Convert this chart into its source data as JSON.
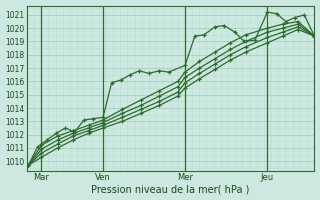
{
  "background_color": "#cce8e0",
  "grid_major_color": "#99ccbb",
  "grid_minor_color": "#bbddd4",
  "line_color": "#2d6b2d",
  "title": "Pression niveau de la mer( hPa )",
  "ylabel_values": [
    1010,
    1011,
    1012,
    1013,
    1014,
    1015,
    1016,
    1017,
    1018,
    1019,
    1020,
    1021
  ],
  "xlim": [
    0.0,
    9.33
  ],
  "ylim": [
    1009.3,
    1021.7
  ],
  "x_ticks": [
    0.47,
    2.47,
    5.13,
    7.8
  ],
  "x_tick_labels": [
    "Mar",
    "Ven",
    "Mer",
    "Jeu"
  ],
  "vlines": [
    0.47,
    2.47,
    5.13,
    7.8
  ],
  "series": [
    {
      "x": [
        0.05,
        0.35,
        0.65,
        0.95,
        1.25,
        1.55,
        1.85,
        2.15,
        2.47,
        2.75,
        3.05,
        3.35,
        3.65,
        3.95,
        4.3,
        4.6,
        5.13,
        5.45,
        5.75,
        6.1,
        6.4,
        6.75,
        7.05,
        7.4,
        7.8,
        8.1,
        8.4,
        8.7,
        9.0,
        9.33
      ],
      "y": [
        1009.7,
        1011.1,
        1011.6,
        1012.1,
        1012.5,
        1012.2,
        1013.1,
        1013.2,
        1013.3,
        1015.9,
        1016.1,
        1016.5,
        1016.8,
        1016.6,
        1016.8,
        1016.7,
        1017.2,
        1019.4,
        1019.5,
        1020.1,
        1020.2,
        1019.7,
        1019.0,
        1019.1,
        1021.2,
        1021.1,
        1020.5,
        1020.8,
        1021.0,
        1019.4
      ]
    },
    {
      "x": [
        0.05,
        0.47,
        1.0,
        1.5,
        2.0,
        2.47,
        3.1,
        3.7,
        4.3,
        4.9,
        5.13,
        5.6,
        6.1,
        6.6,
        7.1,
        7.8,
        8.3,
        8.8,
        9.33
      ],
      "y": [
        1009.7,
        1011.2,
        1011.9,
        1012.3,
        1012.7,
        1013.1,
        1013.9,
        1014.6,
        1015.3,
        1016.0,
        1016.7,
        1017.5,
        1018.2,
        1018.9,
        1019.5,
        1020.0,
        1020.3,
        1020.5,
        1019.4
      ]
    },
    {
      "x": [
        0.05,
        0.47,
        1.0,
        1.5,
        2.0,
        2.47,
        3.1,
        3.7,
        4.3,
        4.9,
        5.13,
        5.6,
        6.1,
        6.6,
        7.1,
        7.8,
        8.3,
        8.8,
        9.33
      ],
      "y": [
        1009.7,
        1010.9,
        1011.6,
        1012.1,
        1012.5,
        1012.9,
        1013.6,
        1014.2,
        1014.9,
        1015.6,
        1016.3,
        1017.0,
        1017.7,
        1018.4,
        1019.0,
        1019.7,
        1020.0,
        1020.3,
        1019.4
      ]
    },
    {
      "x": [
        0.05,
        0.47,
        1.0,
        1.5,
        2.0,
        2.47,
        3.1,
        3.7,
        4.3,
        4.9,
        5.13,
        5.6,
        6.1,
        6.6,
        7.1,
        7.8,
        8.3,
        8.8,
        9.33
      ],
      "y": [
        1009.7,
        1010.6,
        1011.3,
        1011.9,
        1012.3,
        1012.7,
        1013.3,
        1013.9,
        1014.5,
        1015.2,
        1015.9,
        1016.6,
        1017.3,
        1018.0,
        1018.6,
        1019.3,
        1019.7,
        1020.1,
        1019.4
      ]
    },
    {
      "x": [
        0.05,
        0.47,
        1.0,
        1.5,
        2.0,
        2.47,
        3.1,
        3.7,
        4.3,
        4.9,
        5.13,
        5.6,
        6.1,
        6.6,
        7.1,
        7.8,
        8.3,
        8.8,
        9.33
      ],
      "y": [
        1009.7,
        1010.3,
        1011.0,
        1011.6,
        1012.1,
        1012.5,
        1013.0,
        1013.6,
        1014.2,
        1014.9,
        1015.5,
        1016.2,
        1016.9,
        1017.6,
        1018.2,
        1018.9,
        1019.4,
        1019.9,
        1019.4
      ]
    }
  ],
  "marker": "+",
  "marker_size": 3.5,
  "linewidth": 0.9,
  "title_fontsize": 7,
  "ytick_fontsize": 5.5,
  "xtick_fontsize": 6
}
